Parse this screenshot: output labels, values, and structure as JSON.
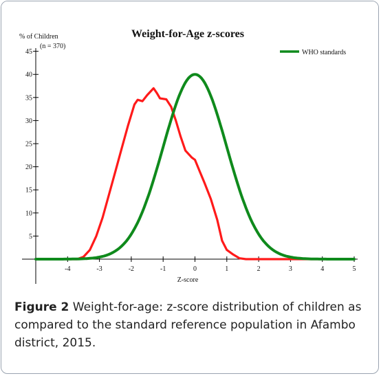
{
  "figure": {
    "caption_label": "Figure 2",
    "caption_text": " Weight-for-age: z-score distribution of children as compared to the standard reference population in Afambo district, 2015."
  },
  "chart_data": {
    "type": "line",
    "title": "Weight-for-Age z-scores",
    "ylabel": "% of Children",
    "ylabel_note": "(n = 370)",
    "xlabel": "Z-score",
    "xlim": [
      -5,
      5
    ],
    "ylim": [
      0,
      45
    ],
    "xticks": [
      "-4",
      "-3",
      "-2",
      "-1",
      "0",
      "1",
      "2",
      "3",
      "4",
      "5"
    ],
    "yticks": [
      "5",
      "10",
      "15",
      "20",
      "25",
      "30",
      "35",
      "40",
      "45"
    ],
    "legend_placement": "top-right",
    "grid": false,
    "series": [
      {
        "color": "#ff1a1a",
        "points": [
          [
            -5,
            0
          ],
          [
            -3.7,
            0
          ],
          [
            -3.5,
            0.5
          ],
          [
            -3.3,
            2
          ],
          [
            -3.1,
            5
          ],
          [
            -2.9,
            9
          ],
          [
            -2.7,
            14
          ],
          [
            -2.5,
            19
          ],
          [
            -2.3,
            24
          ],
          [
            -2.1,
            29
          ],
          [
            -1.9,
            33.5
          ],
          [
            -1.8,
            34.5
          ],
          [
            -1.65,
            34.2
          ],
          [
            -1.5,
            35.5
          ],
          [
            -1.3,
            37
          ],
          [
            -1.2,
            36
          ],
          [
            -1.1,
            34.8
          ],
          [
            -0.9,
            34.6
          ],
          [
            -0.75,
            33
          ],
          [
            -0.6,
            30
          ],
          [
            -0.45,
            26.5
          ],
          [
            -0.3,
            23.5
          ],
          [
            -0.1,
            22
          ],
          [
            0.0,
            21.5
          ],
          [
            0.15,
            19
          ],
          [
            0.3,
            16.5
          ],
          [
            0.5,
            13
          ],
          [
            0.7,
            8.5
          ],
          [
            0.85,
            4
          ],
          [
            1.0,
            2
          ],
          [
            1.2,
            1
          ],
          [
            1.4,
            0.2
          ],
          [
            1.6,
            0
          ],
          [
            5,
            0
          ]
        ]
      },
      {
        "name": "WHO standards",
        "color": "#0f8a1c",
        "mean": 0,
        "sd": 1,
        "peak": 40
      }
    ]
  }
}
